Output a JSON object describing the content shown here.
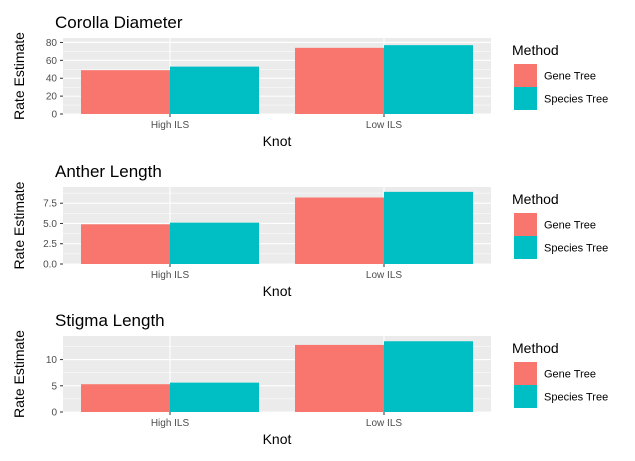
{
  "chart_data": [
    {
      "type": "bar",
      "title": "Corolla Diameter",
      "xlabel": "Knot",
      "ylabel": "Rate Estimate",
      "categories": [
        "High ILS",
        "Low ILS"
      ],
      "series": [
        {
          "name": "Gene Tree",
          "values": [
            49,
            74
          ]
        },
        {
          "name": "Species Tree",
          "values": [
            53,
            77
          ]
        }
      ],
      "ylim": [
        0,
        85
      ],
      "yticks": [
        0,
        20,
        40,
        60,
        80
      ],
      "ytick_labels": [
        "0",
        "20",
        "40",
        "60",
        "80"
      ]
    },
    {
      "type": "bar",
      "title": "Anther Length",
      "xlabel": "Knot",
      "ylabel": "Rate Estimate",
      "categories": [
        "High ILS",
        "Low ILS"
      ],
      "series": [
        {
          "name": "Gene Tree",
          "values": [
            4.9,
            8.2
          ]
        },
        {
          "name": "Species Tree",
          "values": [
            5.1,
            8.9
          ]
        }
      ],
      "ylim": [
        0,
        9.5
      ],
      "yticks": [
        0,
        2.5,
        5,
        7.5
      ],
      "ytick_labels": [
        "0.0",
        "2.5",
        "5.0",
        "7.5"
      ]
    },
    {
      "type": "bar",
      "title": "Stigma Length",
      "xlabel": "Knot",
      "ylabel": "Rate Estimate",
      "categories": [
        "High ILS",
        "Low ILS"
      ],
      "series": [
        {
          "name": "Gene Tree",
          "values": [
            5.3,
            12.8
          ]
        },
        {
          "name": "Species Tree",
          "values": [
            5.6,
            13.5
          ]
        }
      ],
      "ylim": [
        0,
        14.5
      ],
      "yticks": [
        0,
        5,
        10
      ],
      "ytick_labels": [
        "0",
        "5",
        "10"
      ]
    }
  ],
  "legend": {
    "title": "Method",
    "entries": [
      "Gene Tree",
      "Species Tree"
    ],
    "placement": "right"
  },
  "colors": {
    "Gene Tree": "#F8766D",
    "Species Tree": "#00BFC4",
    "panel_background": "#EBEBEB",
    "gridline": "#FFFFFF"
  },
  "grid": true
}
